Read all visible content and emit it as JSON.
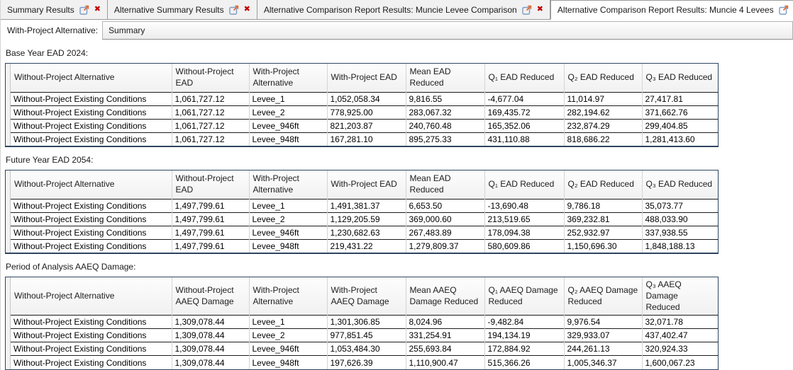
{
  "tabs": [
    {
      "label": "Summary Results",
      "active": false
    },
    {
      "label": "Alternative Summary Results",
      "active": false
    },
    {
      "label": "Alternative Comparison Report Results: Muncie Levee Comparison",
      "active": false
    },
    {
      "label": "Alternative Comparison Report Results: Muncie 4 Levees",
      "active": true
    }
  ],
  "icons": {
    "external_link": "open-in-new-window",
    "close": "✖"
  },
  "toolbar": {
    "label": "With-Project Alternative:",
    "value": "Summary"
  },
  "sections": [
    {
      "title": "Base Year EAD 2024:",
      "columns": [
        "Without-Project Alternative",
        "Without-Project EAD",
        "With-Project Alternative",
        "With-Project EAD",
        "Mean EAD Reduced",
        "Q₁ EAD Reduced",
        "Q₂ EAD Reduced",
        "Q₃ EAD Reduced"
      ],
      "rows": [
        [
          "Without-Project Existing Conditions",
          "1,061,727.12",
          "Levee_1",
          "1,052,058.34",
          "9,816.55",
          "-4,677.04",
          "11,014.97",
          "27,417.81"
        ],
        [
          "Without-Project Existing Conditions",
          "1,061,727.12",
          "Levee_2",
          "778,925.00",
          "283,067.32",
          "169,435.72",
          "282,194.62",
          "371,662.76"
        ],
        [
          "Without-Project Existing Conditions",
          "1,061,727.12",
          "Levee_946ft",
          "821,203.87",
          "240,760.48",
          "165,352.06",
          "232,874.29",
          "299,404.85"
        ],
        [
          "Without-Project Existing Conditions",
          "1,061,727.12",
          "Levee_948ft",
          "167,281.10",
          "895,275.33",
          "431,110.88",
          "818,686.22",
          "1,281,413.60"
        ]
      ]
    },
    {
      "title": "Future Year EAD 2054:",
      "columns": [
        "Without-Project Alternative",
        "Without-Project EAD",
        "With-Project Alternative",
        "With-Project EAD",
        "Mean EAD Reduced",
        "Q₁ EAD Reduced",
        "Q₂ EAD Reduced",
        "Q₃ EAD Reduced"
      ],
      "rows": [
        [
          "Without-Project Existing Conditions",
          "1,497,799.61",
          "Levee_1",
          "1,491,381.37",
          "6,653.50",
          "-13,690.48",
          "9,786.18",
          "35,073.77"
        ],
        [
          "Without-Project Existing Conditions",
          "1,497,799.61",
          "Levee_2",
          "1,129,205.59",
          "369,000.60",
          "213,519.65",
          "369,232.81",
          "488,033.90"
        ],
        [
          "Without-Project Existing Conditions",
          "1,497,799.61",
          "Levee_946ft",
          "1,230,682.63",
          "267,483.89",
          "178,094.38",
          "252,932.97",
          "337,938.55"
        ],
        [
          "Without-Project Existing Conditions",
          "1,497,799.61",
          "Levee_948ft",
          "219,431.22",
          "1,279,809.37",
          "580,609.86",
          "1,150,696.30",
          "1,848,188.13"
        ]
      ]
    },
    {
      "title": "Period of Analysis AAEQ Damage:",
      "columns": [
        "Without-Project Alternative",
        "Without-Project AAEQ Damage",
        "With-Project Alternative",
        "With-Project AAEQ Damage",
        "Mean AAEQ Damage Reduced",
        "Q₁ AAEQ Damage Reduced",
        "Q₂ AAEQ Damage Reduced",
        "Q₃ AAEQ Damage Reduced"
      ],
      "rows": [
        [
          "Without-Project Existing Conditions",
          "1,309,078.44",
          "Levee_1",
          "1,301,306.85",
          "8,024.96",
          "-9,482.84",
          "9,976.54",
          "32,071.78"
        ],
        [
          "Without-Project Existing Conditions",
          "1,309,078.44",
          "Levee_2",
          "977,851.45",
          "331,254.91",
          "194,134.19",
          "329,933.07",
          "437,402.47"
        ],
        [
          "Without-Project Existing Conditions",
          "1,309,078.44",
          "Levee_946ft",
          "1,053,484.30",
          "255,693.84",
          "172,884.92",
          "244,261.13",
          "320,924.33"
        ],
        [
          "Without-Project Existing Conditions",
          "1,309,078.44",
          "Levee_948ft",
          "197,626.39",
          "1,110,900.47",
          "515,366.26",
          "1,005,346.37",
          "1,600,067.23"
        ]
      ]
    }
  ]
}
